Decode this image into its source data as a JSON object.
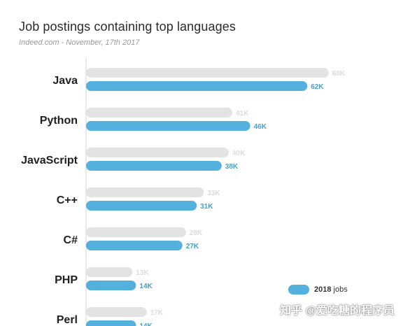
{
  "title": "Job postings containing top languages",
  "subtitle": "Indeed.com - November, 17th 2017",
  "colors": {
    "old": "#e3e3e3",
    "new": "#54b0dd",
    "axis": "#d5d5d5"
  },
  "legend": {
    "year": "2018",
    "suffix": "jobs"
  },
  "watermark": "知乎 @爱吃糖的程序员",
  "chart_data": {
    "type": "bar",
    "orientation": "horizontal",
    "categories": [
      "Java",
      "Python",
      "JavaScript",
      "C++",
      "C#",
      "PHP",
      "Perl"
    ],
    "series": [
      {
        "values": [
          68,
          41,
          40,
          33,
          28,
          13,
          17
        ],
        "labels": [
          "68K",
          "41K",
          "40K",
          "33K",
          "28K",
          "13K",
          "17K"
        ]
      },
      {
        "name": "2018",
        "values": [
          62,
          46,
          38,
          31,
          27,
          14,
          14
        ],
        "labels": [
          "62K",
          "46K",
          "38K",
          "31K",
          "27K",
          "14K",
          "14K"
        ]
      }
    ],
    "unit": "K",
    "grid": false
  }
}
